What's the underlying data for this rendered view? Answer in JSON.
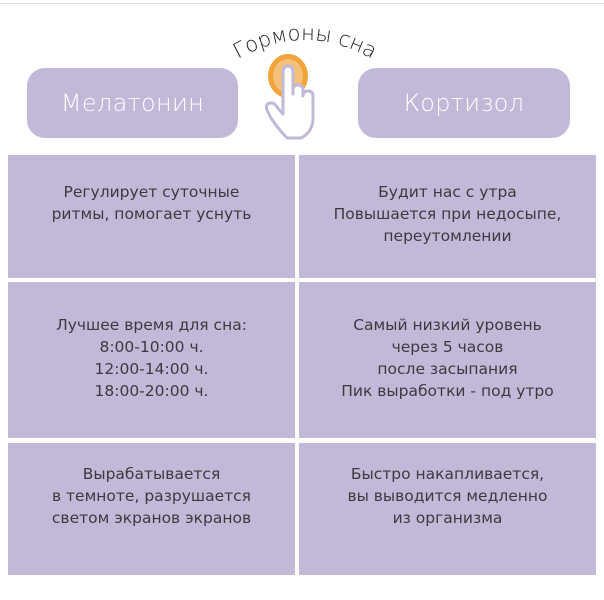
{
  "title": "Гормоны сна",
  "columns": [
    {
      "label": "Мелатонин"
    },
    {
      "label": "Кортизол"
    }
  ],
  "rows": [
    {
      "melatonin": "Регулирует суточные\nритмы, помогает уснуть",
      "cortisol": "Будит нас с утра\nПовышается при недосыпе,\nпереутомлении"
    },
    {
      "melatonin": "Лучшее время для сна:\n8:00-10:00 ч.\n12:00-14:00 ч.\n18:00-20:00 ч.",
      "cortisol": "Самый низкий уровень\nчерез 5 часов\nпосле засыпания\nПик выработки - под утро"
    },
    {
      "melatonin": "Вырабатывается\nв темноте, разрушается\nсветом экранов экранов",
      "cortisol": "Быстро накапливается,\nвы выводится медленно\nиз организма"
    }
  ],
  "colors": {
    "cell": "#c2b8d8",
    "accent": "#f0a43a",
    "text": "#3c3a40"
  },
  "icons": {
    "center": "hand-pointer-icon"
  }
}
